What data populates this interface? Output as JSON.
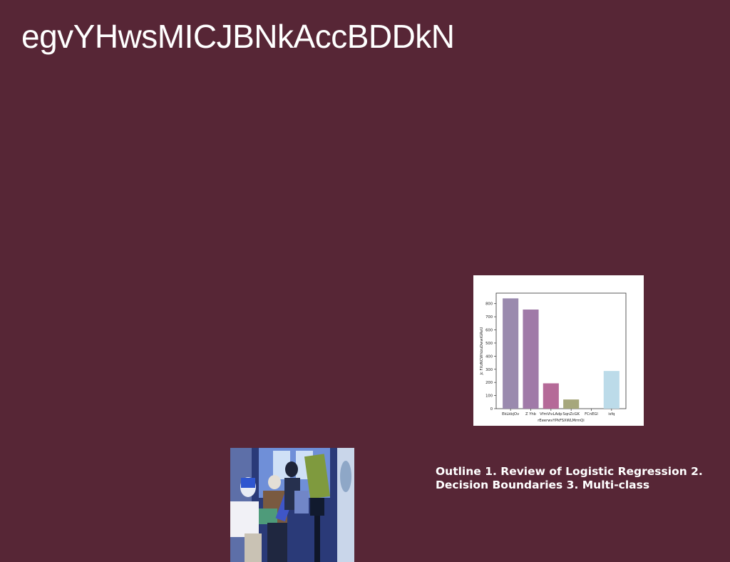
{
  "slide": {
    "title": "egvYHwsMICJBNkAccBDDkN",
    "caption": "Outline 1. Review of Logistic Regression 2. Decision Boundaries 3. Multi-class"
  },
  "colors": {
    "background": "#572636",
    "bars": [
      "#9a8aae",
      "#a07aa8",
      "#b56a98",
      "#a6a77c",
      "#d6cfcf",
      "#bcdbe9"
    ]
  },
  "chart_data": {
    "type": "bar",
    "categories": [
      "EkLkbjOv",
      "Z Yhb",
      "VfmVivLAdp",
      "SqnZcGK",
      "FCnEGl",
      "isfq"
    ],
    "values": [
      840,
      755,
      193,
      70,
      0,
      287
    ],
    "title": "",
    "xlabel": "rEeerwvYPkFSXWLMrmQi",
    "ylabel": "Jc FXzNCWhizuDwwiGReU",
    "ylim": [
      0,
      880
    ],
    "yticks": [
      0,
      100,
      200,
      300,
      400,
      500,
      600,
      700,
      800
    ],
    "grid": false
  }
}
